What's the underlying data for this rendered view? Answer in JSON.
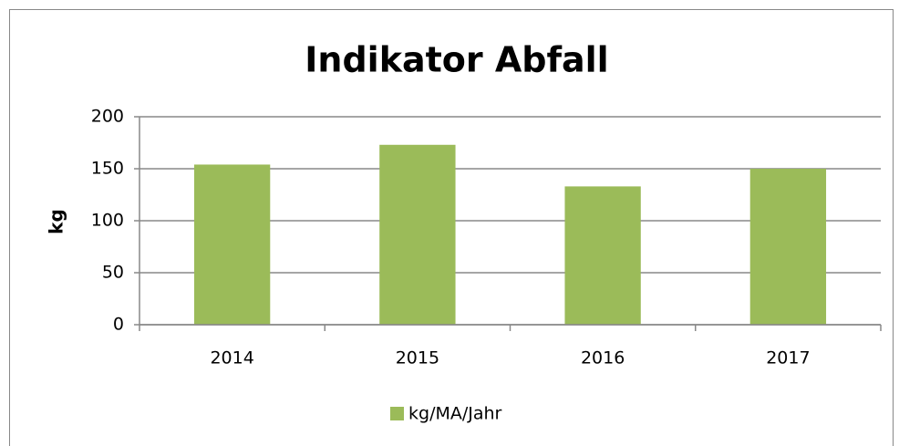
{
  "chart_data": {
    "type": "bar",
    "title": "Indikator Abfall",
    "y_label": "kg",
    "categories": [
      "2014",
      "2015",
      "2016",
      "2017"
    ],
    "series": [
      {
        "name": "kg/MA/Jahr",
        "color": "#9bbb59",
        "values": [
          154,
          173,
          133,
          150
        ]
      }
    ],
    "ylim": [
      0,
      200
    ],
    "yticks": [
      0,
      50,
      100,
      150,
      200
    ],
    "grid": true,
    "legend": "bottom"
  }
}
